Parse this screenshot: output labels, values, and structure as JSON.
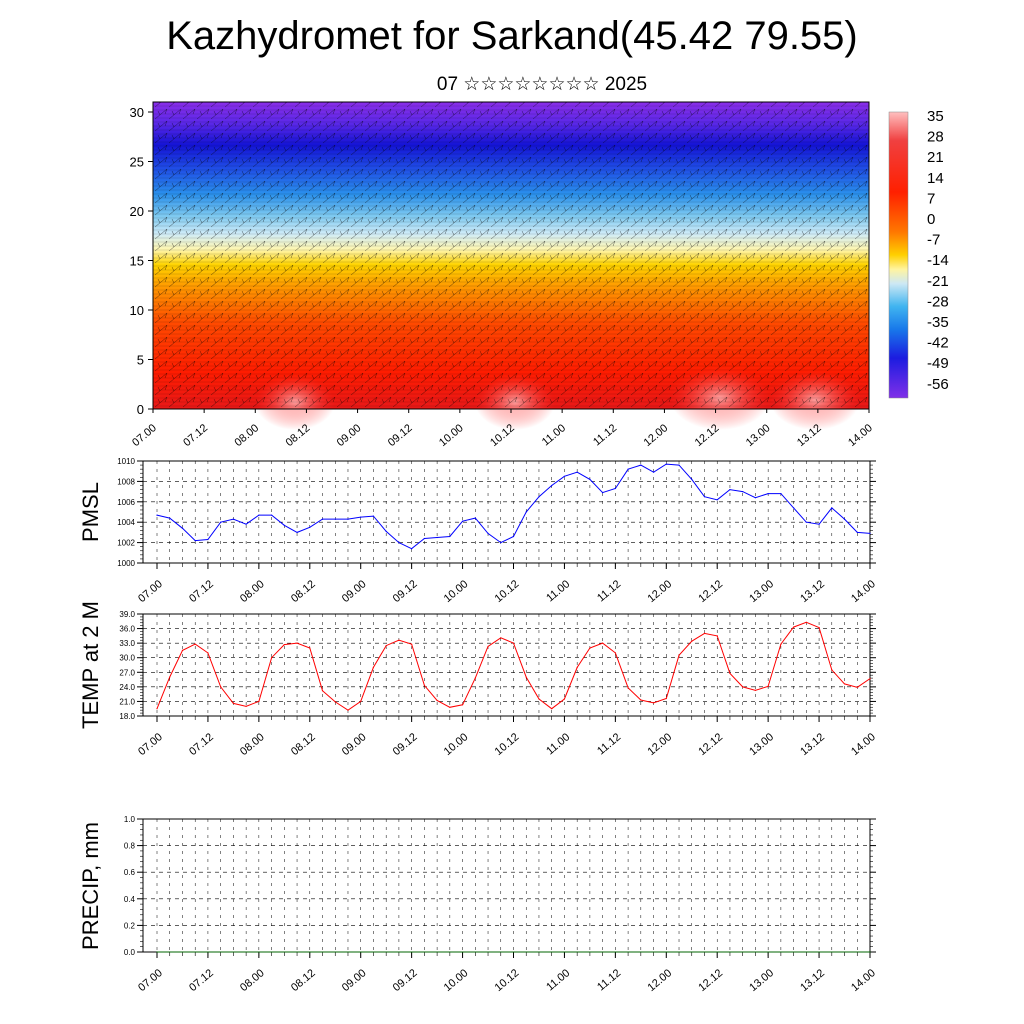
{
  "title": "Kazhydromet for Sarkand(45.42 79.55)",
  "subtitle": "07 ☆☆☆☆☆☆☆☆ 2025",
  "colors": {
    "pmsl_line": "#0000ff",
    "temp_line": "#ff0000",
    "precip_line": "#006400",
    "colorbar_top": "#ffc0c0",
    "colorbar_bottom": "#7a20e8"
  },
  "chart_data": [
    {
      "type": "heatmap",
      "ylim": [
        0,
        30
      ],
      "yticks": [
        "0",
        "5",
        "10",
        "15",
        "20",
        "25",
        "30"
      ],
      "xticks": [
        "07.00",
        "07.12",
        "08.00",
        "08.12",
        "09.00",
        "09.12",
        "10.00",
        "10.12",
        "11.00",
        "11.12",
        "12.00",
        "12.12",
        "13.00",
        "13.12",
        "14.00"
      ],
      "colorbar_labels": [
        "35",
        "28",
        "21",
        "14",
        "7",
        "0",
        "-7",
        "-14",
        "-21",
        "-28",
        "-35",
        "-42",
        "-49",
        "-56"
      ],
      "colorbar_range": [
        -60,
        38
      ],
      "overlay": "wind barbs"
    },
    {
      "type": "line",
      "ylabel": "PMSL",
      "ylim": [
        1000,
        1010
      ],
      "yticks": [
        "1000",
        "1002",
        "1004",
        "1006",
        "1008",
        "1010"
      ],
      "xticks": [
        "07.00",
        "07.12",
        "08.00",
        "08.12",
        "09.00",
        "09.12",
        "10.00",
        "10.12",
        "11.00",
        "11.12",
        "12.00",
        "12.12",
        "13.00",
        "13.12",
        "14.00"
      ],
      "x": [
        0,
        3,
        6,
        9,
        12,
        15,
        18,
        21,
        24,
        27,
        30,
        33,
        36,
        39,
        42,
        45,
        48,
        51,
        54,
        57,
        60,
        63,
        66,
        69,
        72,
        75,
        78,
        81,
        84,
        87,
        90,
        93,
        96,
        99,
        102,
        105,
        108,
        111,
        114,
        117,
        120,
        123,
        126,
        129,
        132,
        135,
        138,
        141,
        144,
        147,
        150,
        153,
        156,
        159,
        162,
        165,
        168
      ],
      "series": [
        {
          "values": [
            1004.7,
            1004.4,
            1003.4,
            1002.2,
            1002.3,
            1004.0,
            1004.3,
            1003.8,
            1004.7,
            1004.7,
            1003.7,
            1003.0,
            1003.5,
            1004.3,
            1004.3,
            1004.3,
            1004.5,
            1004.6,
            1003.1,
            1002.0,
            1001.4,
            1002.4,
            1002.5,
            1002.6,
            1004.1,
            1004.4,
            1002.9,
            1002.0,
            1002.6,
            1005.0,
            1006.5,
            1007.6,
            1008.5,
            1008.9,
            1008.2,
            1006.9,
            1007.3,
            1009.2,
            1009.6,
            1008.9,
            1009.7,
            1009.6,
            1008.2,
            1006.5,
            1006.2,
            1007.2,
            1007.0,
            1006.4,
            1006.8,
            1006.8,
            1005.4,
            1004.0,
            1003.8,
            1005.4,
            1004.3,
            1003.0,
            1002.9
          ]
        }
      ]
    },
    {
      "type": "line",
      "ylabel": "TEMP at 2 M",
      "ylim": [
        18,
        39
      ],
      "yticks": [
        "18.0",
        "21.0",
        "24.0",
        "27.0",
        "30.0",
        "33.0",
        "36.0",
        "39.0"
      ],
      "xticks": [
        "07.00",
        "07.12",
        "08.00",
        "08.12",
        "09.00",
        "09.12",
        "10.00",
        "10.12",
        "11.00",
        "11.12",
        "12.00",
        "12.12",
        "13.00",
        "13.12",
        "14.00"
      ],
      "x": [
        0,
        3,
        6,
        9,
        12,
        15,
        18,
        21,
        24,
        27,
        30,
        33,
        36,
        39,
        42,
        45,
        48,
        51,
        54,
        57,
        60,
        63,
        66,
        69,
        72,
        75,
        78,
        81,
        84,
        87,
        90,
        93,
        96,
        99,
        102,
        105,
        108,
        111,
        114,
        117,
        120,
        123,
        126,
        129,
        132,
        135,
        138,
        141,
        144,
        147,
        150,
        153,
        156,
        159,
        162,
        165,
        168
      ],
      "series": [
        {
          "values": [
            19.5,
            26.0,
            31.5,
            32.8,
            31.0,
            24.0,
            20.6,
            20.0,
            21.0,
            30.0,
            32.7,
            33.0,
            32.0,
            23.2,
            20.9,
            19.2,
            21.0,
            28.0,
            32.5,
            33.6,
            32.8,
            24.3,
            21.2,
            19.8,
            20.3,
            25.8,
            32.3,
            34.1,
            33.0,
            26.0,
            21.5,
            19.5,
            21.5,
            28.0,
            32.0,
            33.0,
            31.0,
            23.8,
            21.3,
            20.7,
            21.6,
            30.5,
            33.4,
            35.0,
            34.5,
            26.8,
            24.0,
            23.3,
            24.1,
            32.8,
            36.3,
            37.3,
            36.2,
            27.5,
            24.6,
            23.9,
            25.7
          ]
        }
      ]
    },
    {
      "type": "line",
      "ylabel": "PRECIP, mm",
      "ylim": [
        0,
        1
      ],
      "yticks": [
        "0.0",
        "0.2",
        "0.4",
        "0.6",
        "0.8",
        "1.0"
      ],
      "xticks": [
        "07.00",
        "07.12",
        "08.00",
        "08.12",
        "09.00",
        "09.12",
        "10.00",
        "10.12",
        "11.00",
        "11.12",
        "12.00",
        "12.12",
        "13.00",
        "13.12",
        "14.00"
      ],
      "x": [
        0,
        168
      ],
      "series": [
        {
          "values": [
            0,
            0
          ]
        }
      ]
    }
  ]
}
